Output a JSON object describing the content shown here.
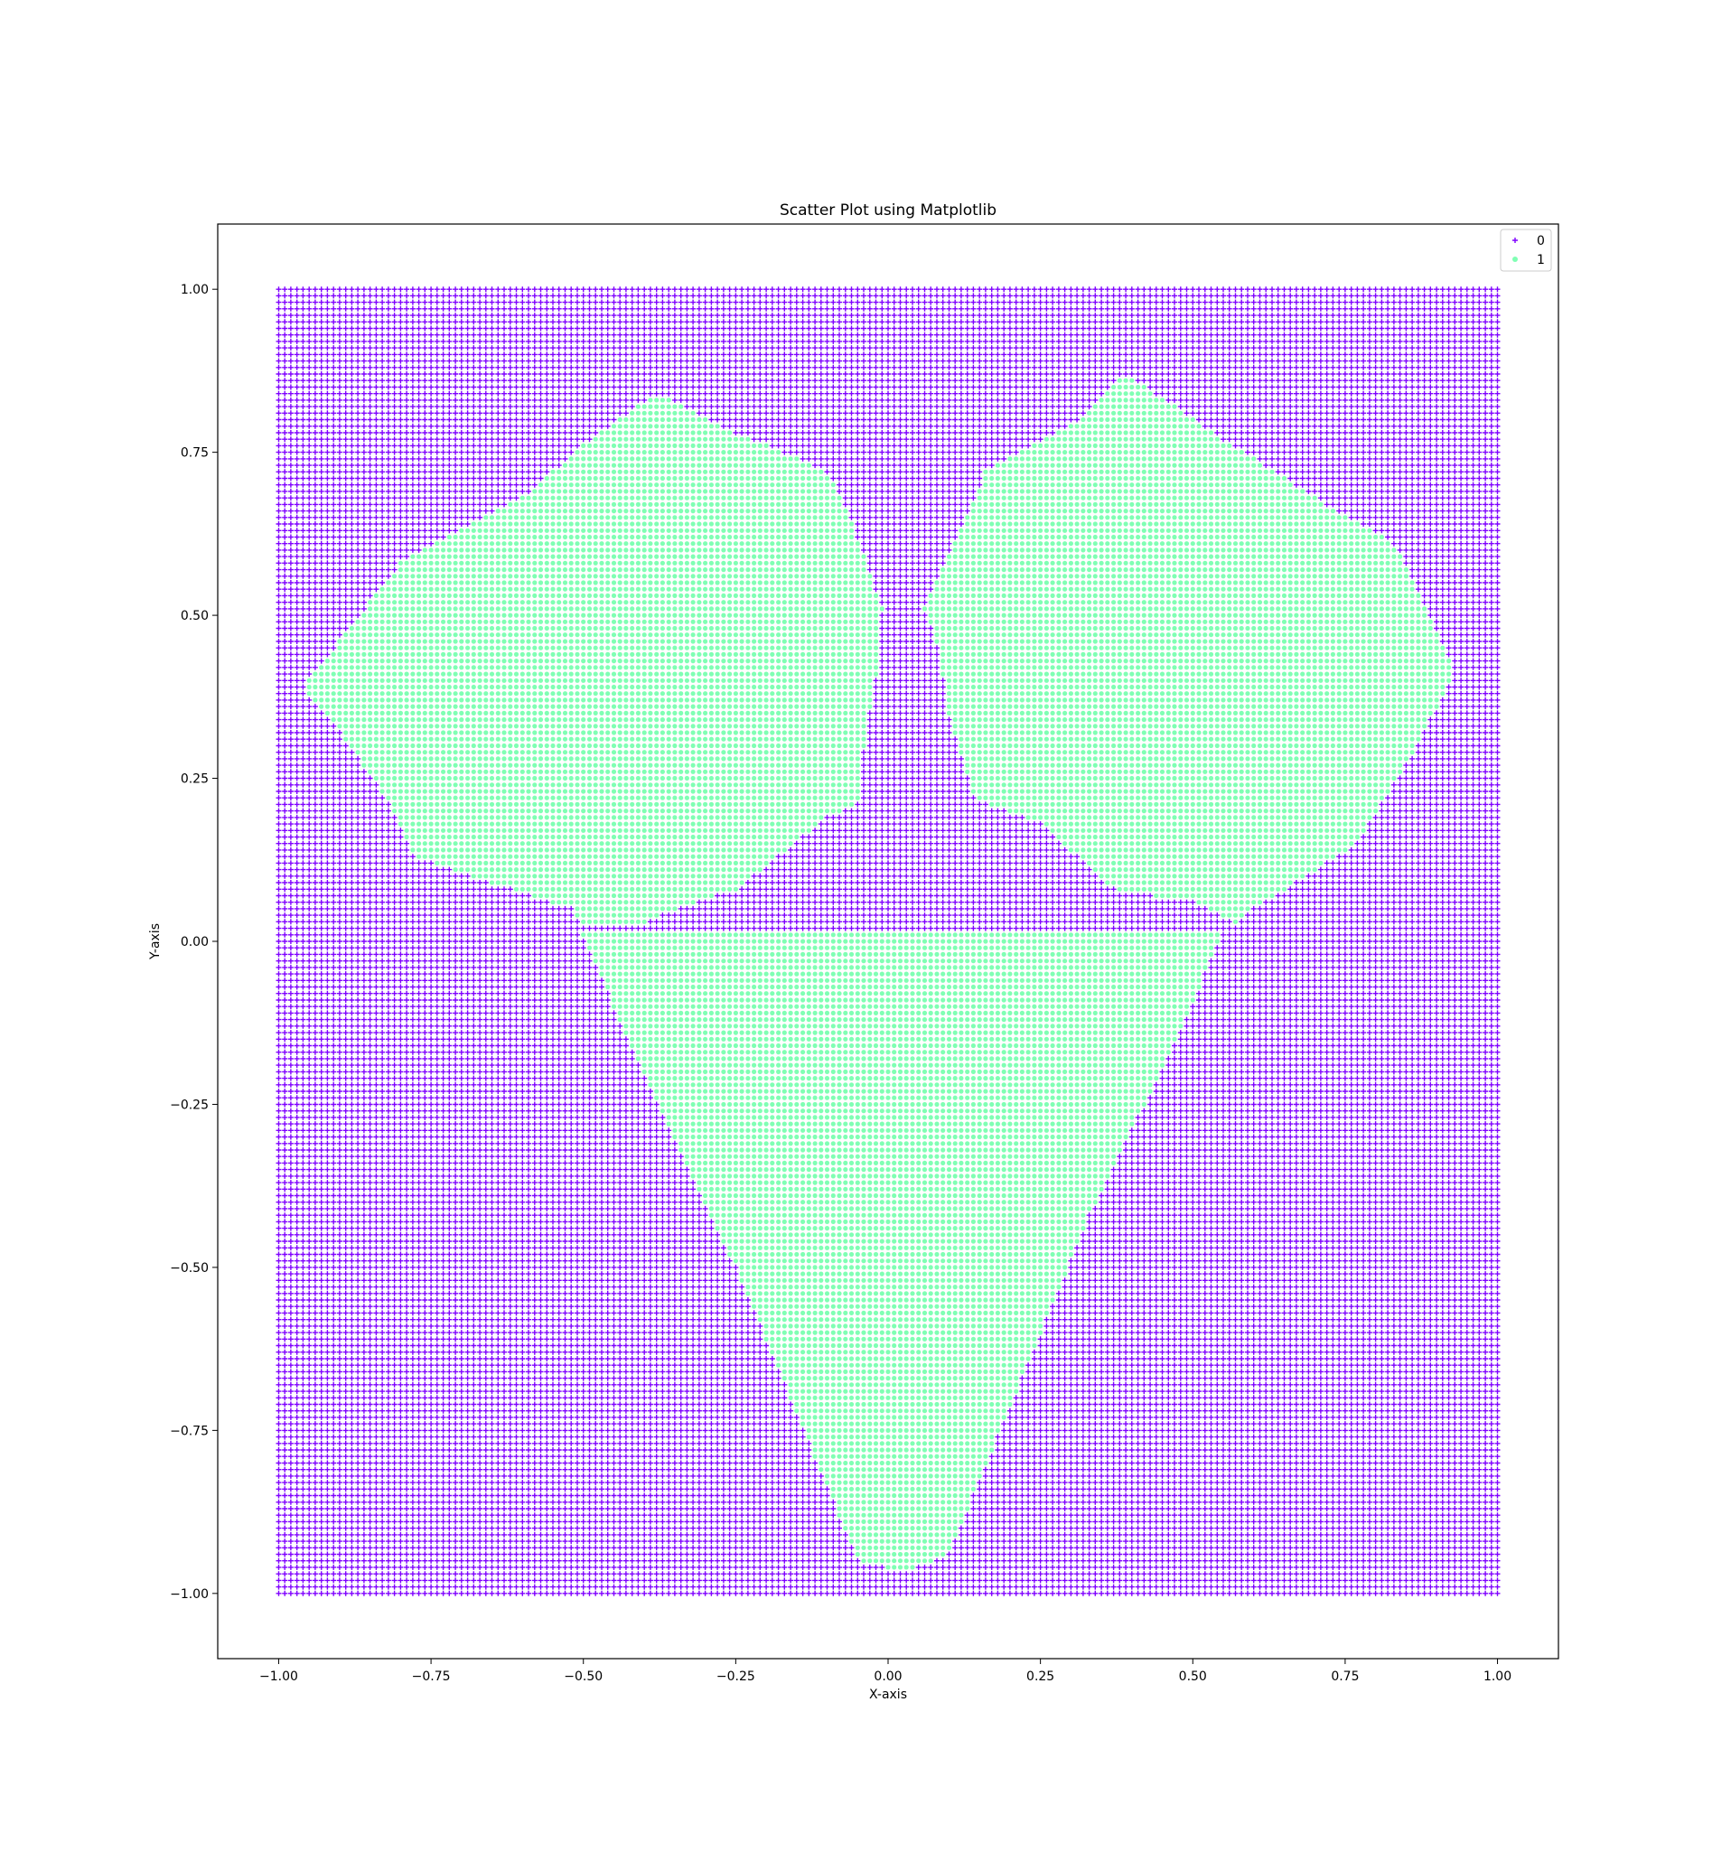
{
  "chart_data": {
    "type": "scatter",
    "title": "Scatter Plot using Matplotlib",
    "xlabel": "X-axis",
    "ylabel": "Y-axis",
    "xlim": [
      -1.1,
      1.1
    ],
    "ylim": [
      -1.1,
      1.1
    ],
    "grid": false,
    "legend_position": "top-right",
    "x_ticks": [
      -1.0,
      -0.75,
      -0.5,
      -0.25,
      0.0,
      0.25,
      0.5,
      0.75,
      1.0
    ],
    "x_tick_labels": [
      "−1.00",
      "−0.75",
      "−0.50",
      "−0.25",
      "0.00",
      "0.25",
      "0.50",
      "0.75",
      "1.00"
    ],
    "y_ticks": [
      -1.0,
      -0.75,
      -0.5,
      -0.25,
      0.0,
      0.25,
      0.5,
      0.75,
      1.0
    ],
    "y_tick_labels": [
      "−1.00",
      "−0.75",
      "−0.50",
      "−0.25",
      "0.00",
      "0.25",
      "0.50",
      "0.75",
      "1.00"
    ],
    "grid_points": {
      "x_range": [
        -1.0,
        1.0
      ],
      "y_range": [
        -1.0,
        1.0
      ],
      "count_per_axis": 201
    },
    "series": [
      {
        "name": "0",
        "color": "#7f00ff",
        "marker": "plus",
        "region": "all grid points outside the class-1 regions"
      },
      {
        "name": "1",
        "color": "#80ffb4",
        "marker": "circle",
        "regions": [
          {
            "label": "upper-left lobe",
            "polygon": [
              [
                -0.96,
                0.39
              ],
              [
                -0.8,
                0.58
              ],
              [
                -0.6,
                0.68
              ],
              [
                -0.5,
                0.76
              ],
              [
                -0.38,
                0.84
              ],
              [
                -0.25,
                0.78
              ],
              [
                -0.1,
                0.72
              ],
              [
                -0.05,
                0.62
              ],
              [
                -0.01,
                0.51
              ],
              [
                -0.02,
                0.4
              ],
              [
                -0.04,
                0.3
              ],
              [
                -0.05,
                0.21
              ],
              [
                -0.1,
                0.19
              ],
              [
                -0.25,
                0.08
              ],
              [
                -0.4,
                0.03
              ],
              [
                -0.5,
                0.02
              ],
              [
                -0.52,
                0.05
              ],
              [
                -0.62,
                0.08
              ],
              [
                -0.78,
                0.13
              ],
              [
                -0.83,
                0.23
              ],
              [
                -0.9,
                0.32
              ]
            ]
          },
          {
            "label": "upper-right lobe",
            "polygon": [
              [
                0.06,
                0.51
              ],
              [
                0.12,
                0.63
              ],
              [
                0.16,
                0.72
              ],
              [
                0.3,
                0.79
              ],
              [
                0.39,
                0.87
              ],
              [
                0.55,
                0.77
              ],
              [
                0.7,
                0.68
              ],
              [
                0.83,
                0.61
              ],
              [
                0.93,
                0.41
              ],
              [
                0.85,
                0.27
              ],
              [
                0.77,
                0.15
              ],
              [
                0.6,
                0.05
              ],
              [
                0.57,
                0.03
              ],
              [
                0.5,
                0.06
              ],
              [
                0.37,
                0.08
              ],
              [
                0.25,
                0.18
              ],
              [
                0.14,
                0.22
              ],
              [
                0.1,
                0.34
              ],
              [
                0.08,
                0.46
              ]
            ]
          },
          {
            "label": "lower triangle",
            "polygon": [
              [
                -0.52,
                0.02
              ],
              [
                0.55,
                0.02
              ],
              [
                0.49,
                -0.12
              ],
              [
                0.33,
                -0.42
              ],
              [
                0.1,
                -0.94
              ],
              [
                0.05,
                -0.96
              ],
              [
                -0.01,
                -0.96
              ],
              [
                -0.05,
                -0.95
              ],
              [
                -0.25,
                -0.5
              ],
              [
                -0.38,
                -0.25
              ],
              [
                -0.46,
                -0.08
              ],
              [
                -0.5,
                0.0
              ]
            ]
          }
        ]
      }
    ]
  }
}
